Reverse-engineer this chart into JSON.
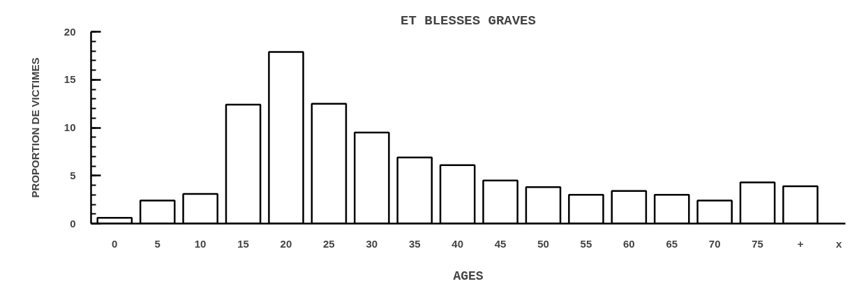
{
  "chart_data": {
    "type": "bar",
    "title": "ET BLESSES GRAVES",
    "xlabel": "AGES",
    "ylabel": "PROPORTION DE VICTIMES",
    "categories": [
      "0",
      "5",
      "10",
      "15",
      "20",
      "25",
      "30",
      "35",
      "40",
      "45",
      "50",
      "55",
      "60",
      "65",
      "70",
      "75",
      "+"
    ],
    "values": [
      0.6,
      2.4,
      3.1,
      12.4,
      17.9,
      12.5,
      9.5,
      6.9,
      6.1,
      4.5,
      3.8,
      3.0,
      3.4,
      3.0,
      2.4,
      4.3,
      3.9
    ],
    "color": "#ffffff",
    "ylim": [
      0,
      20
    ],
    "yticks": [
      0,
      5,
      10,
      15,
      20
    ],
    "grid": false,
    "annotations": [
      "x"
    ]
  }
}
